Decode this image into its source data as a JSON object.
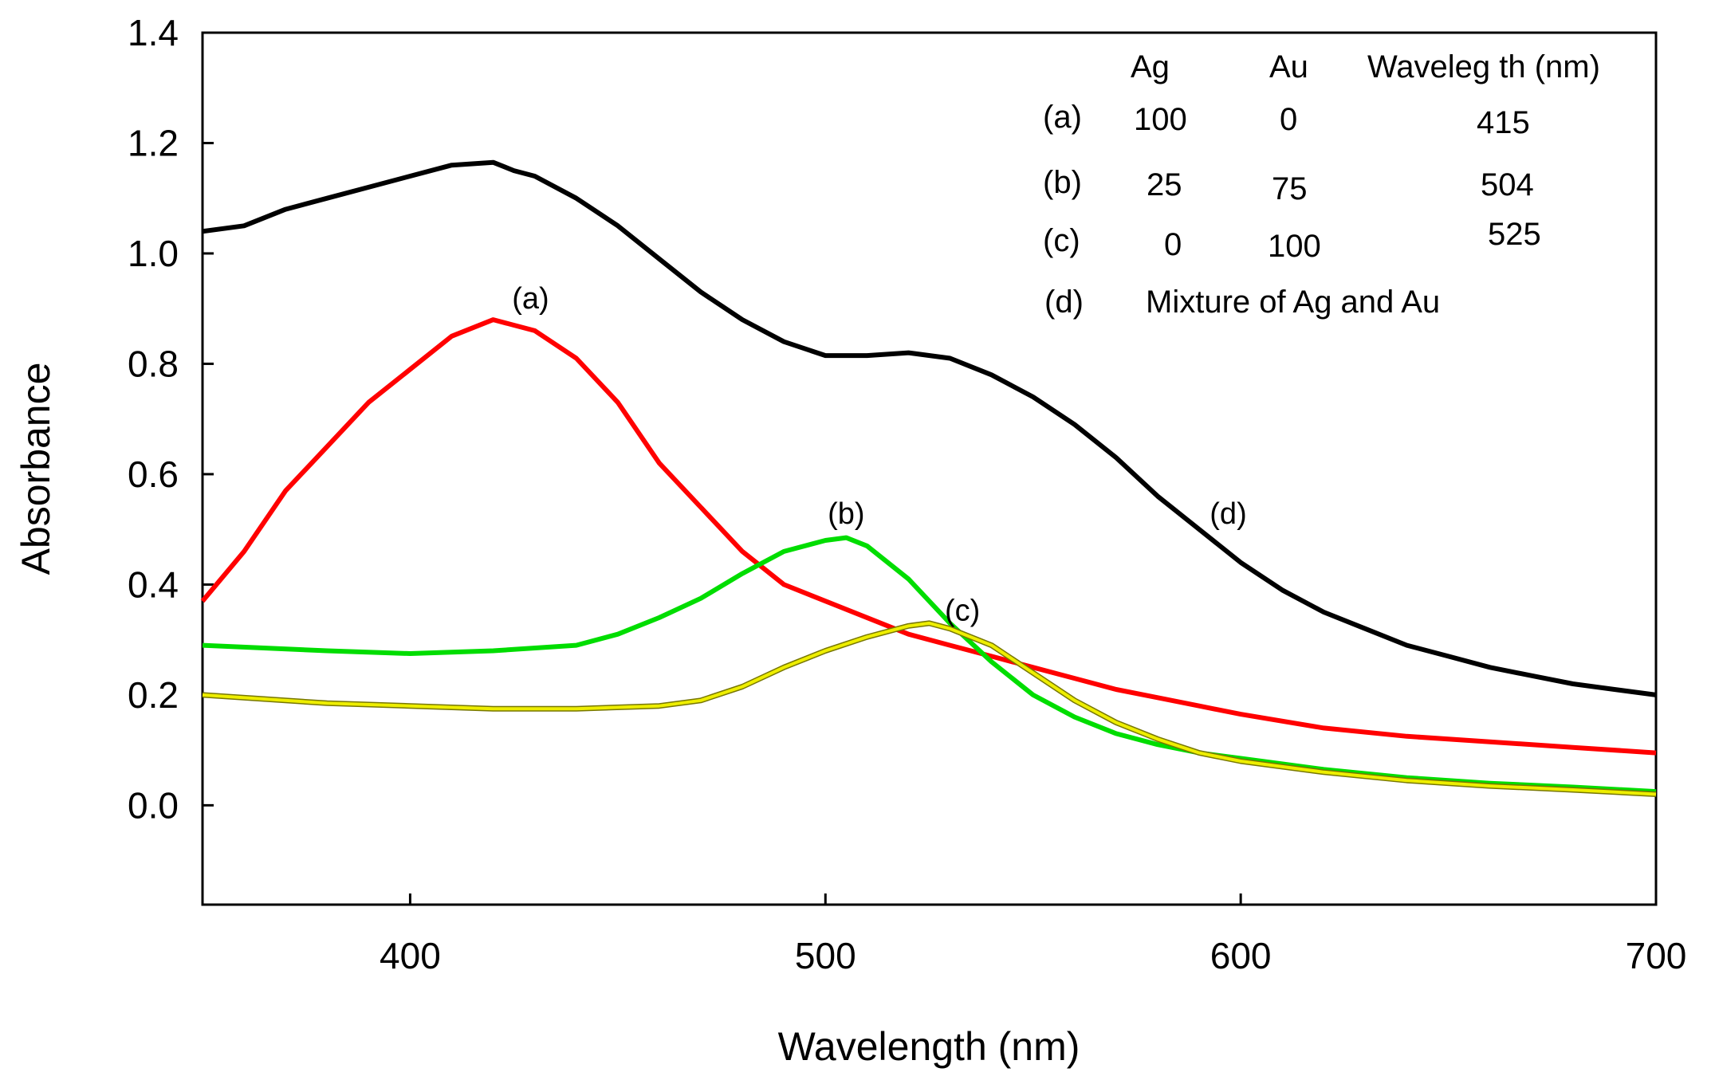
{
  "chart_data": {
    "type": "line",
    "title": "",
    "xlabel": "Wavelength (nm)",
    "ylabel": "Absorbance",
    "xlim": [
      350,
      700
    ],
    "ylim": [
      -0.18,
      1.4
    ],
    "xticks": [
      400,
      500,
      600,
      700
    ],
    "xtick_labels": [
      "400",
      "500",
      "600",
      "700"
    ],
    "yticks": [
      0.0,
      0.2,
      0.4,
      0.6,
      0.8,
      1.0,
      1.2,
      1.4
    ],
    "ytick_labels": [
      "0.0",
      "0.2",
      "0.4",
      "0.6",
      "0.8",
      "1.0",
      "1.2",
      "1.4"
    ],
    "grid": false,
    "series": [
      {
        "name": "(d)",
        "color": "#000000",
        "x": [
          350,
          360,
          370,
          380,
          390,
          400,
          410,
          420,
          425,
          430,
          440,
          450,
          460,
          470,
          480,
          490,
          500,
          510,
          520,
          530,
          540,
          550,
          560,
          570,
          580,
          590,
          600,
          610,
          620,
          630,
          640,
          650,
          660,
          670,
          680,
          690,
          700
        ],
        "y": [
          1.04,
          1.05,
          1.08,
          1.1,
          1.12,
          1.14,
          1.16,
          1.165,
          1.15,
          1.14,
          1.1,
          1.05,
          0.99,
          0.93,
          0.88,
          0.84,
          0.815,
          0.815,
          0.82,
          0.81,
          0.78,
          0.74,
          0.69,
          0.63,
          0.56,
          0.5,
          0.44,
          0.39,
          0.35,
          0.32,
          0.29,
          0.27,
          0.25,
          0.235,
          0.22,
          0.21,
          0.2
        ]
      },
      {
        "name": "(a)",
        "color": "#ff0000",
        "x": [
          350,
          360,
          370,
          380,
          390,
          400,
          410,
          420,
          425,
          430,
          440,
          450,
          460,
          470,
          480,
          490,
          500,
          510,
          520,
          530,
          540,
          550,
          560,
          570,
          580,
          590,
          600,
          620,
          640,
          660,
          680,
          700
        ],
        "y": [
          0.37,
          0.46,
          0.57,
          0.65,
          0.73,
          0.79,
          0.85,
          0.88,
          0.87,
          0.86,
          0.81,
          0.73,
          0.62,
          0.54,
          0.46,
          0.4,
          0.37,
          0.34,
          0.31,
          0.29,
          0.27,
          0.25,
          0.23,
          0.21,
          0.195,
          0.18,
          0.165,
          0.14,
          0.125,
          0.115,
          0.105,
          0.095
        ]
      },
      {
        "name": "(b)",
        "color": "#00dd00",
        "x": [
          350,
          380,
          400,
          420,
          440,
          450,
          460,
          470,
          480,
          490,
          500,
          505,
          510,
          520,
          530,
          540,
          550,
          560,
          570,
          580,
          590,
          600,
          620,
          640,
          660,
          680,
          700
        ],
        "y": [
          0.29,
          0.28,
          0.275,
          0.28,
          0.29,
          0.31,
          0.34,
          0.375,
          0.42,
          0.46,
          0.48,
          0.485,
          0.47,
          0.41,
          0.33,
          0.26,
          0.2,
          0.16,
          0.13,
          0.11,
          0.095,
          0.085,
          0.065,
          0.05,
          0.04,
          0.033,
          0.025
        ]
      },
      {
        "name": "(c)",
        "color": "#eeee00",
        "x": [
          350,
          380,
          400,
          420,
          440,
          460,
          470,
          480,
          490,
          500,
          510,
          520,
          525,
          530,
          540,
          550,
          560,
          570,
          580,
          590,
          600,
          620,
          640,
          660,
          680,
          700
        ],
        "y": [
          0.2,
          0.185,
          0.18,
          0.175,
          0.175,
          0.18,
          0.19,
          0.215,
          0.25,
          0.28,
          0.305,
          0.325,
          0.33,
          0.32,
          0.29,
          0.24,
          0.19,
          0.15,
          0.12,
          0.095,
          0.08,
          0.06,
          0.045,
          0.035,
          0.028,
          0.02
        ]
      }
    ],
    "annotations": [
      {
        "text": "(a)",
        "x": 429,
        "y": 0.9
      },
      {
        "text": "(b)",
        "x": 505,
        "y": 0.51
      },
      {
        "text": "(c)",
        "x": 533,
        "y": 0.335
      },
      {
        "text": "(d)",
        "x": 597,
        "y": 0.51
      }
    ],
    "legend_table": {
      "headers": [
        "Ag",
        "Au",
        "Waveleg th (nm)"
      ],
      "rows": [
        {
          "label": "(a)",
          "ag": "100",
          "au": "0",
          "wl": "415"
        },
        {
          "label": "(b)",
          "ag": "25",
          "au": "75",
          "wl": "504"
        },
        {
          "label": "(c)",
          "ag": "0",
          "au": "100",
          "wl": "525"
        }
      ],
      "note_label": "(d)",
      "note_text": "Mixture of Ag and Au"
    }
  }
}
